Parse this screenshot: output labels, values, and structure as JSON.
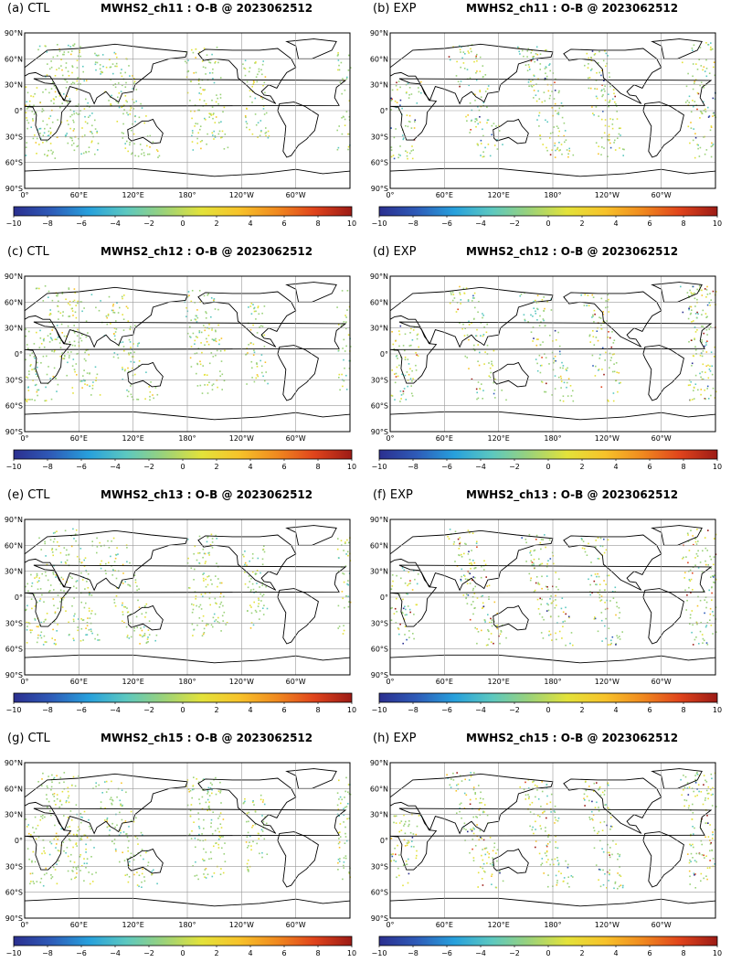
{
  "colorbar": {
    "ticks": [
      "−10",
      "−8",
      "−6",
      "−4",
      "−2",
      "0",
      "2",
      "4",
      "6",
      "8",
      "10"
    ],
    "colors": [
      "#2b2f8f",
      "#2e5bb8",
      "#27a0dc",
      "#5cc8c0",
      "#9bd27a",
      "#e3e23a",
      "#f7c32a",
      "#f08a1f",
      "#e0441c",
      "#9c1b16"
    ]
  },
  "axes": {
    "lat_labels": [
      "90°N",
      "60°N",
      "30°N",
      "0°",
      "30°S",
      "60°S",
      "90°S"
    ],
    "lon_labels": [
      "0°",
      "60°E",
      "120°E",
      "180°",
      "120°W",
      "60°W"
    ]
  },
  "panels": [
    {
      "label": "(a) CTL",
      "title": "MWHS2_ch11 : O-B @ 2023062512"
    },
    {
      "label": "(b) EXP",
      "title": "MWHS2_ch11 : O-B @ 2023062512"
    },
    {
      "label": "(c) CTL",
      "title": "MWHS2_ch12 : O-B @ 2023062512"
    },
    {
      "label": "(d) EXP",
      "title": "MWHS2_ch12 : O-B @ 2023062512"
    },
    {
      "label": "(e) CTL",
      "title": "MWHS2_ch13 : O-B @ 2023062512"
    },
    {
      "label": "(f) EXP",
      "title": "MWHS2_ch13 : O-B @ 2023062512"
    },
    {
      "label": "(g) CTL",
      "title": "MWHS2_ch15 : O-B @ 2023062512"
    },
    {
      "label": "(h) EXP",
      "title": "MWHS2_ch15 : O-B @ 2023062512"
    }
  ]
}
